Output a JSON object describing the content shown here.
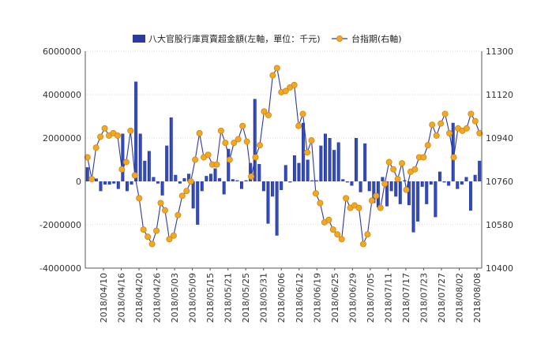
{
  "chart_data": {
    "type": "bar",
    "legend": {
      "placement": "top-center",
      "items": [
        {
          "label": "八大官股行庫買賣超金額(左軸，單位：千元)",
          "kind": "bar",
          "color": "#2b3c9e"
        },
        {
          "label": "台指期(右軸)",
          "kind": "line-marker",
          "color": "#f5a623",
          "line_color": "#2f3a9e"
        }
      ]
    },
    "grid": true,
    "y_left": {
      "min": -4000000,
      "max": 6000000,
      "ticks": [
        6000000,
        4000000,
        2000000,
        0,
        -2000000,
        -4000000
      ]
    },
    "y_right": {
      "min": 10400,
      "max": 11300,
      "ticks": [
        11300,
        11120,
        10940,
        10760,
        10580,
        10400
      ]
    },
    "x_tick_labels": [
      "2018/04/10",
      "2018/04/16",
      "2018/04/20",
      "2018/04/26",
      "2018/05/03",
      "2018/05/09",
      "2018/05/15",
      "2018/05/21",
      "2018/05/25",
      "2018/05/31",
      "2018/06/06",
      "2018/06/12",
      "2018/06/19",
      "2018/06/25",
      "2018/06/29",
      "2018/07/05",
      "2018/07/11",
      "2018/07/17",
      "2018/07/23",
      "2018/07/27",
      "2018/08/02",
      "2018/08/08"
    ],
    "series": [
      {
        "name": "八大官股行庫買賣超金額(左軸，單位：千元)",
        "axis": "left",
        "type": "bar",
        "values": [
          650000,
          180000,
          130000,
          -450000,
          -150000,
          -150000,
          -100000,
          -350000,
          2200000,
          -450000,
          -150000,
          4600000,
          2200000,
          950000,
          1400000,
          200000,
          -100000,
          -650000,
          1650000,
          2950000,
          300000,
          -100000,
          150000,
          350000,
          -1250000,
          -2000000,
          -450000,
          250000,
          350000,
          600000,
          150000,
          -600000,
          1500000,
          100000,
          50000,
          -350000,
          50000,
          850000,
          3800000,
          800000,
          -450000,
          -1950000,
          -700000,
          -2500000,
          -400000,
          750000,
          -50000,
          1200000,
          850000,
          2700000,
          1000000,
          50000,
          50000,
          1650000,
          2200000,
          2000000,
          1450000,
          1800000,
          100000,
          -50000,
          -200000,
          2000000,
          -500000,
          1750000,
          -450000,
          -1000000,
          -1200000,
          200000,
          -1150000,
          -450000,
          -700000,
          -1050000,
          50000,
          -1100000,
          -2350000,
          -1850000,
          -250000,
          -1050000,
          -150000,
          -1650000,
          450000,
          -50000,
          -200000,
          2700000,
          -350000,
          -150000,
          200000,
          -1350000,
          300000,
          950000
        ]
      },
      {
        "name": "台指期(右軸)",
        "axis": "right",
        "type": "line",
        "values": [
          10860,
          10770,
          10900,
          10945,
          10980,
          10950,
          10960,
          10950,
          10810,
          10840,
          10970,
          10785,
          10690,
          10560,
          10530,
          10500,
          10555,
          10670,
          10640,
          10520,
          10535,
          10620,
          10700,
          10720,
          10760,
          10850,
          10960,
          10860,
          10870,
          10830,
          10830,
          10970,
          10920,
          10850,
          10920,
          10935,
          10990,
          10925,
          10780,
          10860,
          10910,
          11050,
          11035,
          11200,
          11230,
          11130,
          11135,
          11150,
          11160,
          10990,
          11040,
          10880,
          10930,
          10710,
          10670,
          10590,
          10600,
          10560,
          10540,
          10520,
          10690,
          10650,
          10660,
          10650,
          10500,
          10540,
          10680,
          10700,
          10650,
          10750,
          10840,
          10810,
          10770,
          10835,
          10725,
          10800,
          10810,
          10860,
          10860,
          10910,
          10995,
          10950,
          11000,
          11040,
          10960,
          10860,
          10980,
          10970,
          10980,
          11040,
          11010,
          10960
        ]
      }
    ]
  }
}
